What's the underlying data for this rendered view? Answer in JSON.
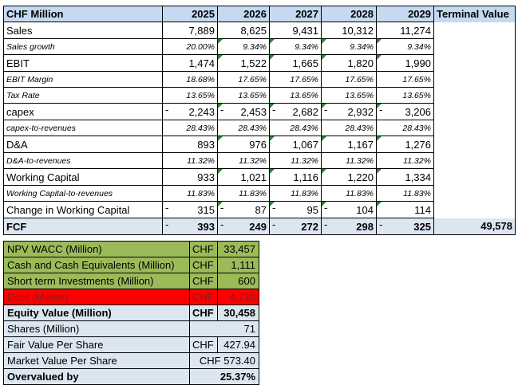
{
  "projection": {
    "header": {
      "label": "CHF Million",
      "years": [
        "2025",
        "2026",
        "2027",
        "2028",
        "2029"
      ],
      "terminal": "Terminal Value"
    },
    "rows": [
      {
        "label": "Sales",
        "values": [
          "7,889",
          "8,625",
          "9,431",
          "10,312",
          "11,274"
        ],
        "kind": "main"
      },
      {
        "label": "Sales growth",
        "values": [
          "20.00%",
          "9.34%",
          "9.34%",
          "9.34%",
          "9.34%"
        ],
        "kind": "sub"
      },
      {
        "label": "EBIT",
        "values": [
          "1,474",
          "1,522",
          "1,665",
          "1,820",
          "1,990"
        ],
        "kind": "main"
      },
      {
        "label": "EBIT Margin",
        "values": [
          "18.68%",
          "17.65%",
          "17.65%",
          "17.65%",
          "17.65%"
        ],
        "kind": "sub"
      },
      {
        "label": "Tax Rate",
        "values": [
          "13.65%",
          "13.65%",
          "13.65%",
          "13.65%",
          "13.65%"
        ],
        "kind": "sub"
      },
      {
        "label": "capex",
        "values": [
          "2,243",
          "2,453",
          "2,682",
          "2,932",
          "3,206"
        ],
        "kind": "main",
        "negative": true
      },
      {
        "label": "capex-to-revenues",
        "values": [
          "28.43%",
          "28.43%",
          "28.43%",
          "28.43%",
          "28.43%"
        ],
        "kind": "sub"
      },
      {
        "label": "D&A",
        "values": [
          "893",
          "976",
          "1,067",
          "1,167",
          "1,276"
        ],
        "kind": "main"
      },
      {
        "label": "D&A-to-revenues",
        "values": [
          "11.32%",
          "11.32%",
          "11.32%",
          "11.32%",
          "11.32%"
        ],
        "kind": "sub"
      },
      {
        "label": "Working Capital",
        "values": [
          "933",
          "1,021",
          "1,116",
          "1,220",
          "1,334"
        ],
        "kind": "main"
      },
      {
        "label": "Working Capital-to-revenues",
        "values": [
          "11.83%",
          "11.83%",
          "11.83%",
          "11.83%",
          "11.83%"
        ],
        "kind": "sub"
      },
      {
        "label": "Change in Working Capital",
        "values": [
          "315",
          "87",
          "95",
          "104",
          "114"
        ],
        "kind": "main",
        "negative_cols": [
          0,
          1,
          2,
          3
        ]
      }
    ],
    "fcf": {
      "label": "FCF",
      "values": [
        "393",
        "249",
        "272",
        "298",
        "325"
      ],
      "terminal_value": "49,578",
      "negative_cols": [
        0,
        1,
        2,
        3,
        4
      ]
    }
  },
  "valuation": {
    "rows": [
      {
        "label": "NPV WACC (Million)",
        "currency": "CHF",
        "value": "33,457",
        "style": "green"
      },
      {
        "label": "Cash and Cash Equivalents (Million)",
        "currency": "CHF",
        "value": "1,111",
        "style": "green"
      },
      {
        "label": "Short term Investments (Million)",
        "currency": "CHF",
        "value": "600",
        "style": "green"
      },
      {
        "label": "Debt (Million)",
        "currency": "CHF",
        "value": "4,710",
        "style": "red"
      },
      {
        "label": "Equity Value (Million)",
        "currency": "CHF",
        "value": "30,458",
        "style": "blue bold"
      },
      {
        "label": "Shares (Million)",
        "currency": "",
        "value": "71",
        "style": "blue"
      },
      {
        "label": "Fair Value Per Share",
        "currency": "CHF",
        "value": "427.94",
        "style": "blue"
      },
      {
        "label": "Market Value Per Share",
        "currency": "",
        "value": "CHF 573.40",
        "style": "blue"
      },
      {
        "label": "Overvalued by",
        "currency": "",
        "value": "25.37%",
        "style": "blue bold"
      }
    ]
  },
  "colors": {
    "header_blue": "#c5d9f1",
    "light_blue": "#dce6f1",
    "green": "#9bbb59",
    "red": "#ff0000",
    "error_triangle": "#1e8c2e"
  }
}
